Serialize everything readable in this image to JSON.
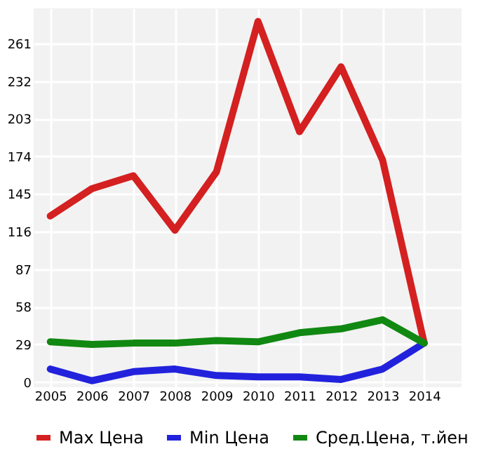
{
  "chart_data": {
    "type": "line",
    "x": [
      2005,
      2006,
      2007,
      2008,
      2009,
      2010,
      2011,
      2012,
      2013,
      2014
    ],
    "series": [
      {
        "name": "Max Цена",
        "color": "#d42020",
        "values": [
          128,
          149,
          159,
          117,
          162,
          278,
          193,
          243,
          171,
          30
        ]
      },
      {
        "name": "Min Цена",
        "color": "#2222dd",
        "values": [
          10,
          1,
          8,
          10,
          5,
          4,
          4,
          2,
          10,
          30
        ]
      },
      {
        "name": "Сред.Цена, т.йен",
        "color": "#118811",
        "values": [
          31,
          29,
          30,
          30,
          32,
          31,
          38,
          41,
          48,
          30
        ]
      }
    ],
    "xlim": [
      2004.6,
      2014.9
    ],
    "xticks": [
      2005,
      2006,
      2007,
      2008,
      2009,
      2010,
      2011,
      2012,
      2013,
      2014
    ],
    "ylim": [
      -4,
      288
    ],
    "yticks": [
      0,
      29,
      58,
      87,
      116,
      145,
      174,
      203,
      232,
      261
    ],
    "grid": true,
    "legend": "bottom",
    "marker": "none",
    "line_style": "solid"
  }
}
